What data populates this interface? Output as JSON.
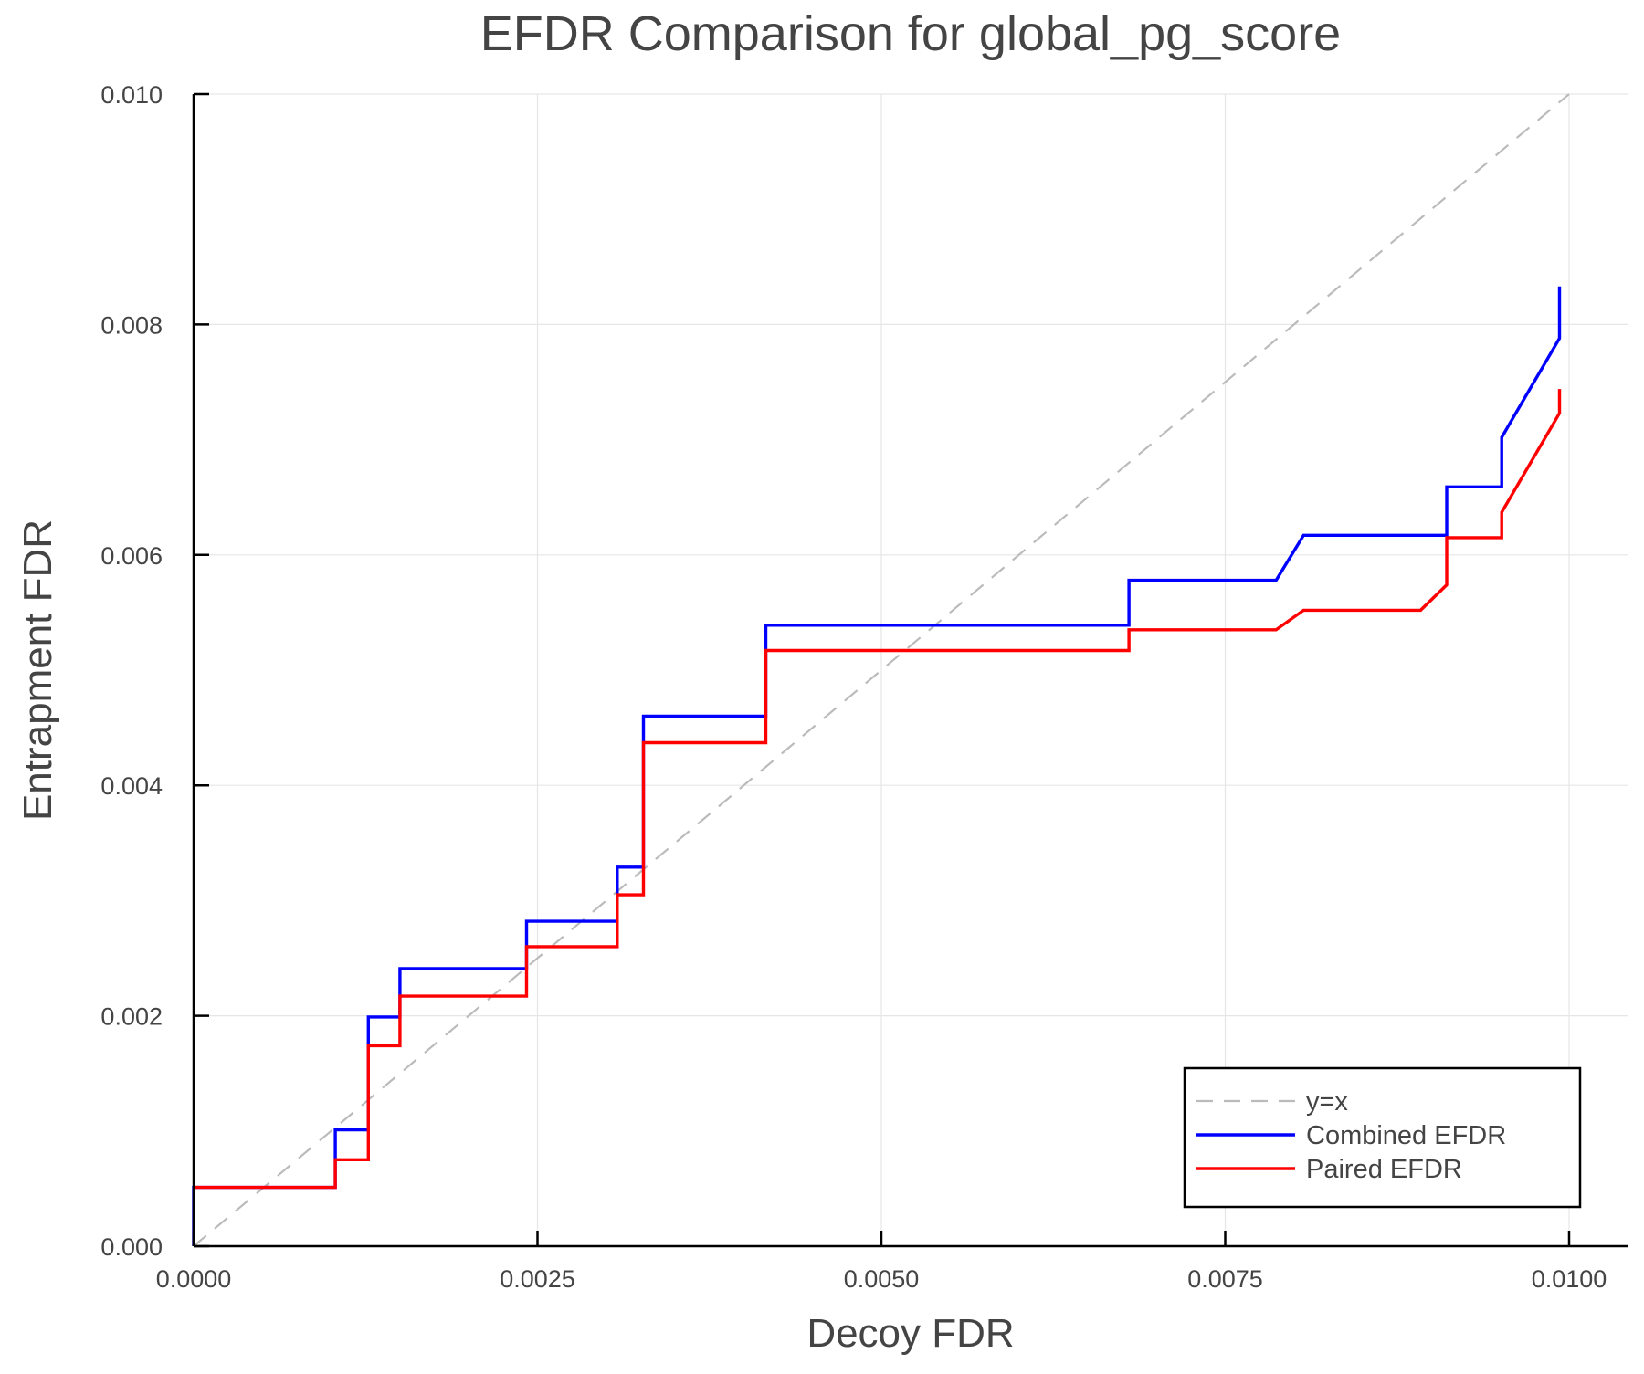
{
  "chart_data": {
    "type": "line",
    "title": "EFDR Comparison for global_pg_score",
    "xlabel": "Decoy FDR",
    "ylabel": "Entrapment FDR",
    "xlim": [
      0,
      0.0105
    ],
    "ylim": [
      0,
      0.01
    ],
    "xticks": [
      "0.0000",
      "0.0025",
      "0.0050",
      "0.0075",
      "0.0100"
    ],
    "xtick_values": [
      0,
      0.0025,
      0.005,
      0.0075,
      0.01
    ],
    "yticks": [
      "0.000",
      "0.002",
      "0.004",
      "0.006",
      "0.008",
      "0.010"
    ],
    "ytick_values": [
      0,
      0.002,
      0.004,
      0.006,
      0.008,
      0.01
    ],
    "grid": true,
    "legend_position": "bottom-right",
    "series": [
      {
        "name": "y=x",
        "color": "#bbbbbb",
        "style": "dashed",
        "points": [
          [
            0,
            0
          ],
          [
            0.01,
            0.01
          ]
        ]
      },
      {
        "name": "Combined EFDR",
        "color": "#0000ff",
        "style": "solid",
        "points": [
          [
            0,
            0
          ],
          [
            0,
            0.00051
          ],
          [
            0.00103,
            0.00051
          ],
          [
            0.00103,
            0.00101
          ],
          [
            0.00127,
            0.00101
          ],
          [
            0.00127,
            0.00199
          ],
          [
            0.0015,
            0.00199
          ],
          [
            0.0015,
            0.00241
          ],
          [
            0.00242,
            0.00241
          ],
          [
            0.00242,
            0.00282
          ],
          [
            0.00308,
            0.00282
          ],
          [
            0.00308,
            0.00329
          ],
          [
            0.00327,
            0.00329
          ],
          [
            0.00327,
            0.0046
          ],
          [
            0.00416,
            0.0046
          ],
          [
            0.00416,
            0.00539
          ],
          [
            0.0068,
            0.00539
          ],
          [
            0.0068,
            0.00578
          ],
          [
            0.00787,
            0.00578
          ],
          [
            0.00807,
            0.00617
          ],
          [
            0.00911,
            0.00617
          ],
          [
            0.00911,
            0.00659
          ],
          [
            0.00951,
            0.00659
          ],
          [
            0.00951,
            0.00702
          ],
          [
            0.00993,
            0.00788
          ],
          [
            0.00993,
            0.00833
          ]
        ]
      },
      {
        "name": "Paired EFDR",
        "color": "#ff0000",
        "style": "solid",
        "points": [
          [
            0,
            0.00051
          ],
          [
            0.00103,
            0.00051
          ],
          [
            0.00103,
            0.00075
          ],
          [
            0.00127,
            0.00075
          ],
          [
            0.00127,
            0.00174
          ],
          [
            0.0015,
            0.00174
          ],
          [
            0.0015,
            0.00217
          ],
          [
            0.00242,
            0.00217
          ],
          [
            0.00242,
            0.0026
          ],
          [
            0.00308,
            0.0026
          ],
          [
            0.00308,
            0.00305
          ],
          [
            0.00327,
            0.00305
          ],
          [
            0.00327,
            0.00437
          ],
          [
            0.00416,
            0.00437
          ],
          [
            0.00416,
            0.00517
          ],
          [
            0.0068,
            0.00517
          ],
          [
            0.0068,
            0.00535
          ],
          [
            0.00787,
            0.00535
          ],
          [
            0.00807,
            0.00552
          ],
          [
            0.00892,
            0.00552
          ],
          [
            0.00911,
            0.00574
          ],
          [
            0.00911,
            0.00615
          ],
          [
            0.00951,
            0.00615
          ],
          [
            0.00951,
            0.00637
          ],
          [
            0.00993,
            0.00723
          ],
          [
            0.00993,
            0.00744
          ]
        ]
      }
    ]
  }
}
